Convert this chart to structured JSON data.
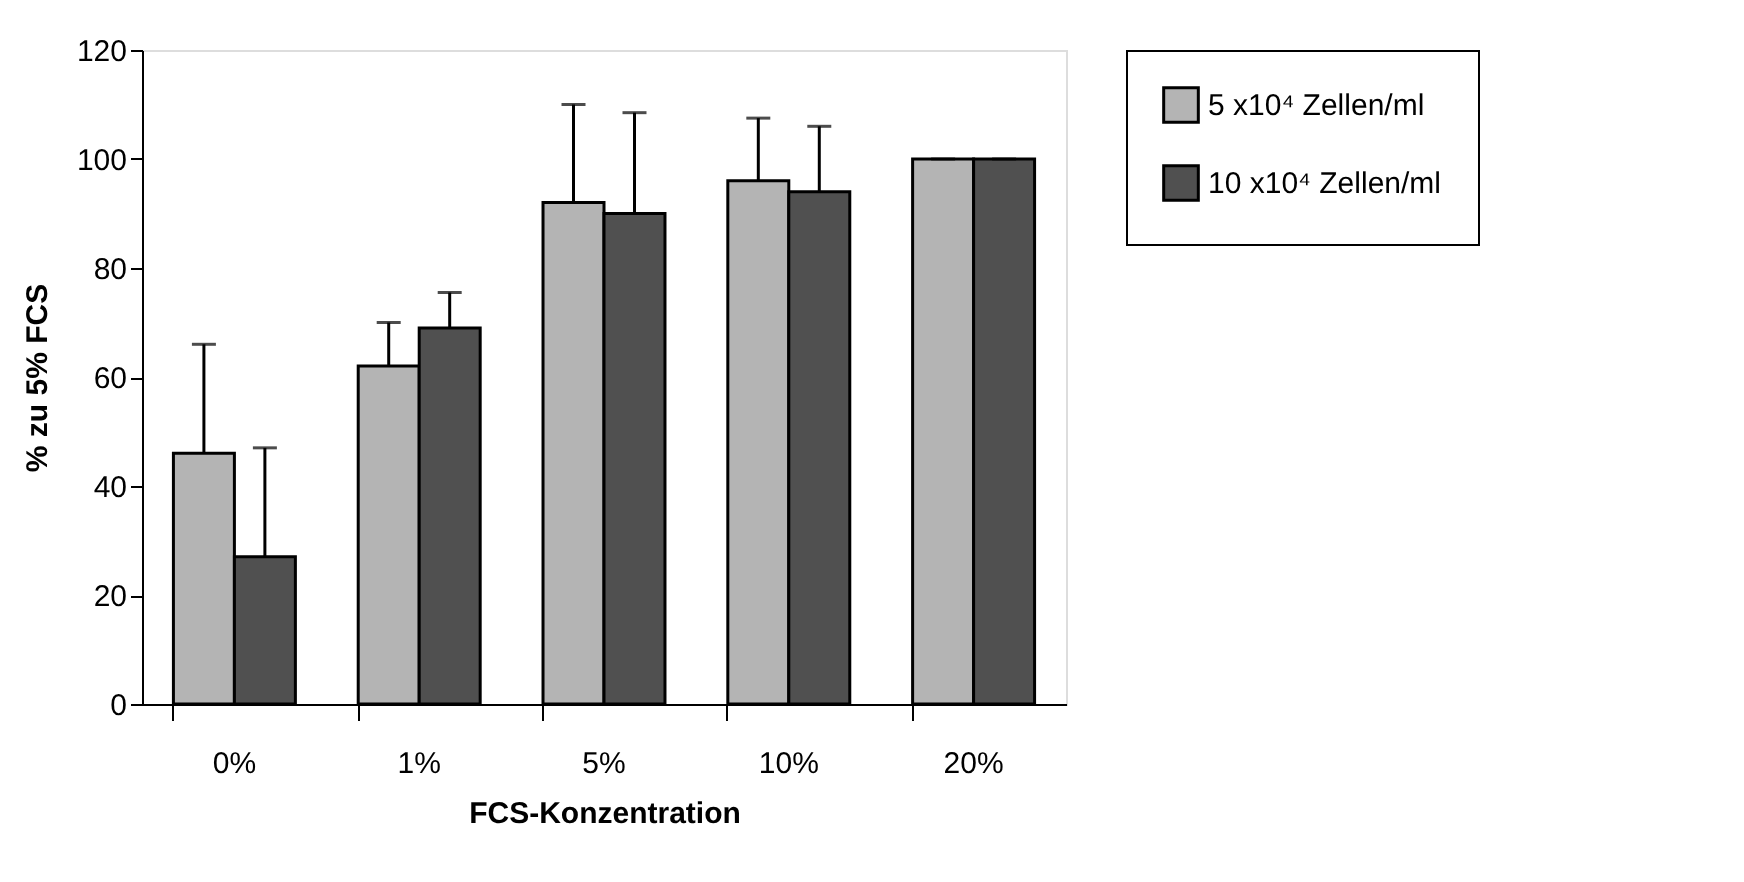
{
  "chart_data": {
    "type": "bar",
    "xlabel": "FCS-Konzentration",
    "ylabel": "% zu 5% FCS",
    "categories": [
      "0%",
      "1%",
      "5%",
      "10%",
      "20%"
    ],
    "series": [
      {
        "name": "5 x10⁴ Zellen/ml",
        "color": "#b4b4b4",
        "values": [
          46,
          62,
          92,
          96,
          100
        ],
        "errors": [
          [
            46,
            66
          ],
          [
            62,
            70
          ],
          [
            92,
            110
          ],
          [
            96,
            107.5
          ],
          [
            100,
            100
          ]
        ]
      },
      {
        "name": "10 x10⁴ Zellen/ml",
        "color": "#505050",
        "values": [
          27,
          69,
          90,
          94,
          100
        ],
        "errors": [
          [
            27,
            47
          ],
          [
            69,
            75.5
          ],
          [
            90,
            108.5
          ],
          [
            94,
            106
          ],
          [
            100,
            100
          ]
        ]
      }
    ],
    "ylim": [
      0,
      120
    ],
    "yticks": [
      0,
      20,
      40,
      60,
      80,
      100,
      120
    ],
    "grid": false,
    "legend": "right"
  }
}
